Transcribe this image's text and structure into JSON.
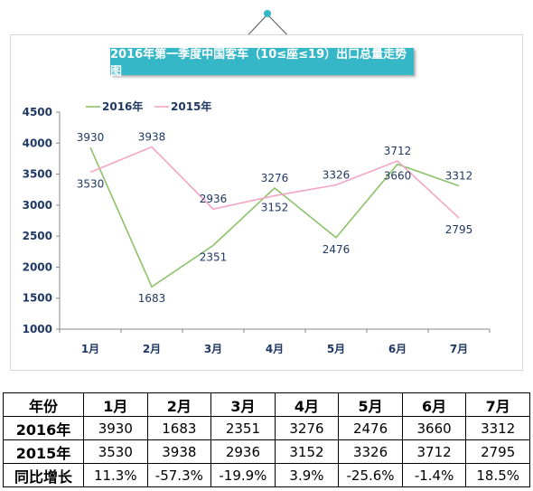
{
  "chart_data": {
    "type": "line",
    "title": "2016年第一季度中国客车（10≤座≤19）出口总量走势图",
    "categories": [
      "1月",
      "2月",
      "3月",
      "4月",
      "5月",
      "6月",
      "7月"
    ],
    "series": [
      {
        "name": "2016年",
        "color": "#8cc26a",
        "values": [
          3930,
          1683,
          2351,
          3276,
          2476,
          3660,
          3312
        ]
      },
      {
        "name": "2015年",
        "color": "#f2a6c4",
        "values": [
          3530,
          3938,
          2936,
          3152,
          3326,
          3712,
          2795
        ]
      }
    ],
    "ylim": [
      1000,
      4500
    ],
    "yticks": [
      1000,
      1500,
      2000,
      2500,
      3000,
      3500,
      4000,
      4500
    ],
    "legend_position": "top-left",
    "grid": false
  },
  "table": {
    "headers": [
      "年份",
      "1月",
      "2月",
      "3月",
      "4月",
      "5月",
      "6月",
      "7月"
    ],
    "rows": [
      {
        "label": "2016年",
        "cells": [
          "3930",
          "1683",
          "2351",
          "3276",
          "2476",
          "3660",
          "3312"
        ]
      },
      {
        "label": "2015年",
        "cells": [
          "3530",
          "3938",
          "2936",
          "3152",
          "3326",
          "3712",
          "2795"
        ]
      },
      {
        "label": "同比增长",
        "cells": [
          "11.3%",
          "-57.3%",
          "-19.9%",
          "3.9%",
          "-25.6%",
          "-1.4%",
          "18.5%"
        ]
      }
    ]
  }
}
